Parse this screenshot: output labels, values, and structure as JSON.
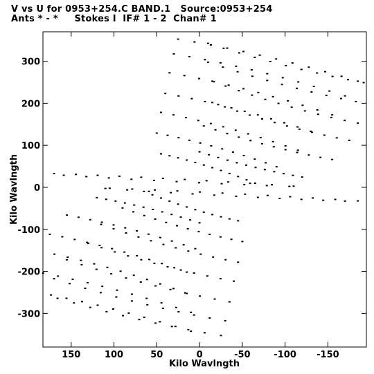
{
  "header": {
    "line1": "V vs U for 0953+254.C BAND.1   Source:0953+254",
    "line2": "Ants * - *     Stokes I  IF# 1 - 2  Chan# 1"
  },
  "chart_data": {
    "type": "scatter",
    "xlabel": "Kilo Wavlngth",
    "ylabel": "Kilo Wavlngth",
    "xlim": [
      183,
      -195
    ],
    "ylim": [
      -380,
      370
    ],
    "x_ticks": [
      150,
      100,
      50,
      0,
      -50,
      -100,
      -150
    ],
    "y_ticks": [
      300,
      200,
      100,
      0,
      -100,
      -200,
      -300
    ],
    "x_tick_labels": [
      "150",
      "100",
      "50",
      "0",
      "-50",
      "-100",
      "-150"
    ],
    "y_tick_labels": [
      "300",
      "200",
      "100",
      "0",
      "-100",
      "-200",
      "-300"
    ],
    "marker": "small square",
    "marker_color": "#000000",
    "uv_tracks": [
      {
        "center": [
          -80,
          310
        ],
        "half_extent": [
          105,
          50
        ]
      },
      {
        "center": [
          -70,
          275
        ],
        "half_extent": [
          100,
          50
        ]
      },
      {
        "center": [
          -60,
          230
        ],
        "half_extent": [
          95,
          50
        ]
      },
      {
        "center": [
          -45,
          185
        ],
        "half_extent": [
          85,
          45
        ]
      },
      {
        "center": [
          -35,
          140
        ],
        "half_extent": [
          80,
          45
        ]
      },
      {
        "center": [
          -20,
          95
        ],
        "half_extent": [
          70,
          40
        ]
      },
      {
        "center": [
          -10,
          50
        ],
        "half_extent": [
          55,
          35
        ]
      },
      {
        "center": [
          30,
          20
        ],
        "half_extent": [
          140,
          15
        ]
      },
      {
        "center": [
          -40,
          -15
        ],
        "half_extent": [
          145,
          15
        ]
      },
      {
        "center": [
          60,
          -50
        ],
        "half_extent": [
          60,
          30
        ]
      },
      {
        "center": [
          80,
          -100
        ],
        "half_extent": [
          75,
          40
        ]
      },
      {
        "center": [
          95,
          -150
        ],
        "half_extent": [
          80,
          45
        ]
      },
      {
        "center": [
          100,
          -195
        ],
        "half_extent": [
          85,
          50
        ]
      },
      {
        "center": [
          105,
          -240
        ],
        "half_extent": [
          95,
          50
        ]
      },
      {
        "center": [
          110,
          -285
        ],
        "half_extent": [
          100,
          50
        ]
      }
    ]
  }
}
